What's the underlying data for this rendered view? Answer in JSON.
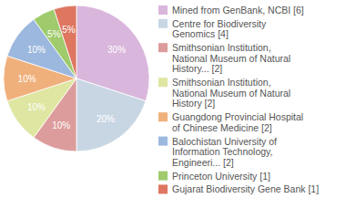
{
  "chart_data": {
    "type": "pie",
    "categories": [
      "Mined from GenBank, NCBI [6]",
      "Centre for Biodiversity\nGenomics [4]",
      "Smithsonian Institution,\nNational Museum of Natural\nHistory... [2]",
      "Smithsonian Institution,\nNational Museum of Natural\nHistory [2]",
      "Guangdong Provincial Hospital\nof Chinese Medicine [2]",
      "Balochistan University of\nInformation Technology,\nEngineeri... [2]",
      "Princeton University [1]",
      "Gujarat Biodiversity Gene Bank [1]"
    ],
    "values": [
      30,
      20,
      10,
      10,
      10,
      10,
      5,
      5
    ],
    "value_labels": [
      "30%",
      "20%",
      "10%",
      "10%",
      "10%",
      "10%",
      "5%",
      "5%"
    ],
    "colors": [
      "#d9b6dc",
      "#c8d6e4",
      "#dc9c9c",
      "#dfe6a2",
      "#f0b07c",
      "#9cb8de",
      "#9fcb6c",
      "#de7660"
    ],
    "data_labels": true,
    "legend": "right"
  }
}
